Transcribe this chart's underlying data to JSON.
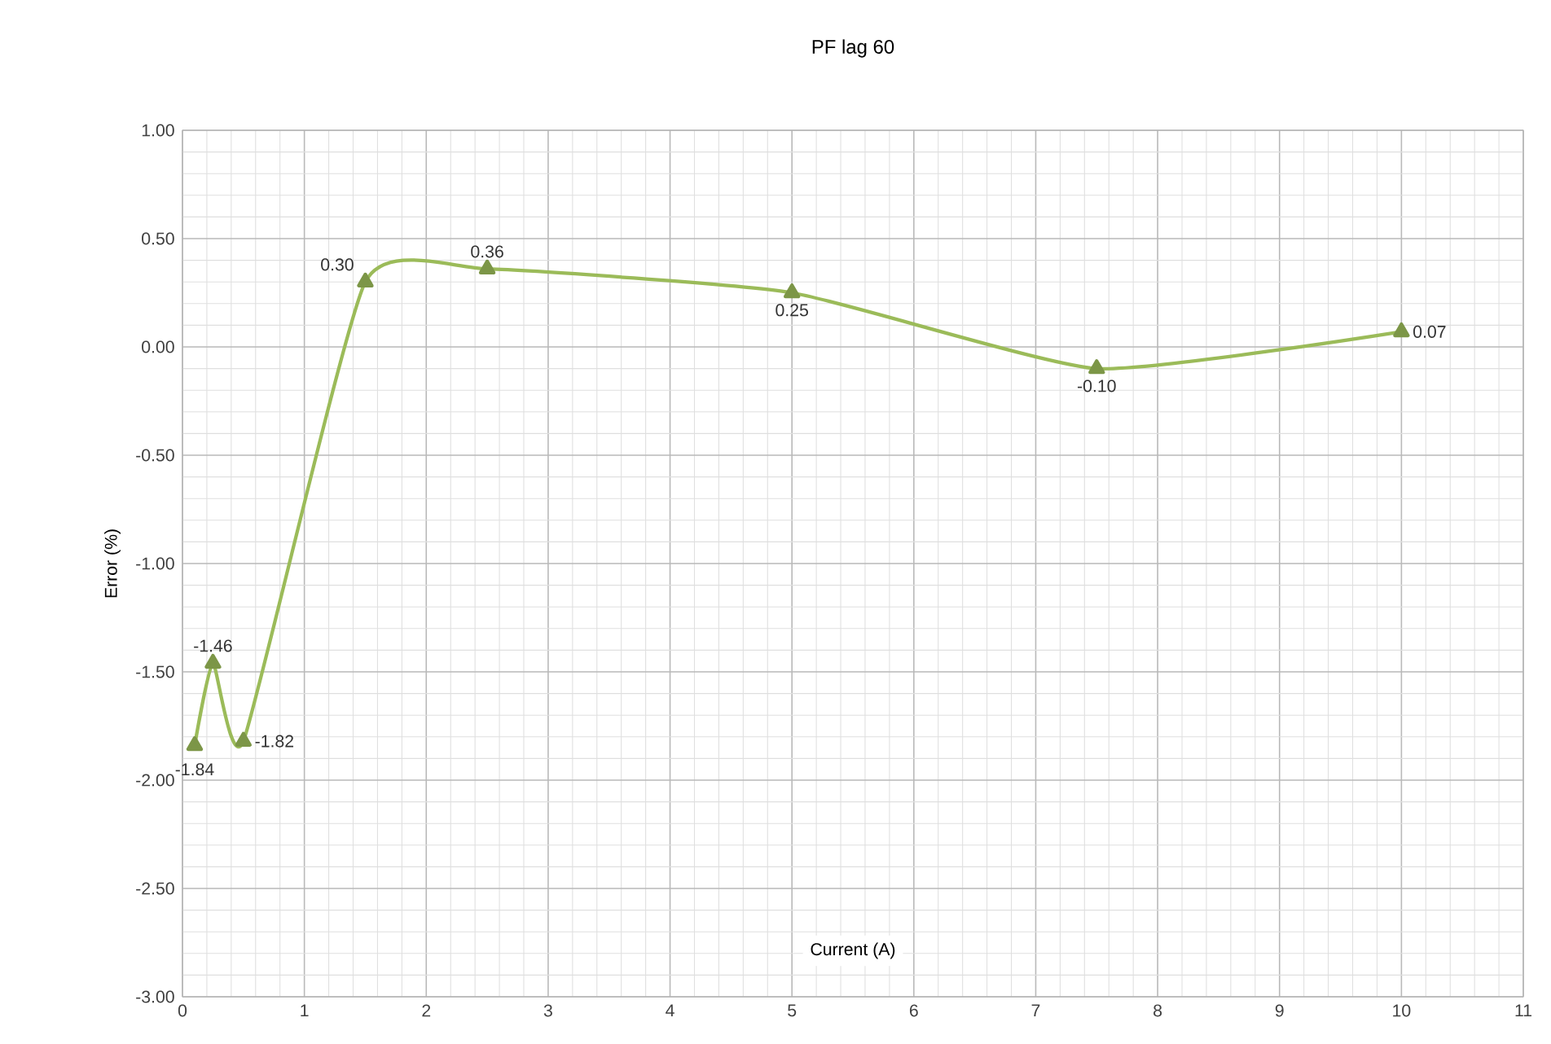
{
  "chart_data": {
    "type": "line",
    "title": "PF lag 60",
    "xlabel": "Current (A)",
    "ylabel": "Error (%)",
    "x": [
      0.1,
      0.25,
      0.5,
      1.5,
      2.5,
      5,
      7.5,
      10
    ],
    "series": [
      {
        "color": "#9bbb59",
        "values": [
          -1.84,
          -1.46,
          -1.82,
          0.3,
          0.36,
          0.25,
          -0.1,
          0.07
        ],
        "value_labels": [
          "-1.84",
          "-1.46",
          "-1.82",
          "0.30",
          "0.36",
          "0.25",
          "-0.10",
          "0.07"
        ]
      }
    ],
    "xlim": [
      0,
      11
    ],
    "xticks": [
      0,
      1,
      2,
      3,
      4,
      5,
      6,
      7,
      8,
      9,
      10,
      11
    ],
    "ylim": [
      -3,
      1
    ],
    "yticks": [
      {
        "value": -3,
        "label": "-3.00"
      },
      {
        "value": -2.5,
        "label": "-2.50"
      },
      {
        "value": -2,
        "label": "-2.00"
      },
      {
        "value": -1.5,
        "label": "-1.50"
      },
      {
        "value": -1,
        "label": "-1.00"
      },
      {
        "value": -0.5,
        "label": "-0.50"
      },
      {
        "value": 0,
        "label": "0.00"
      },
      {
        "value": 0.5,
        "label": "0.50"
      },
      {
        "value": 1,
        "label": "1.00"
      }
    ],
    "grid": true,
    "marker": "triangle",
    "line_style": "solid"
  }
}
